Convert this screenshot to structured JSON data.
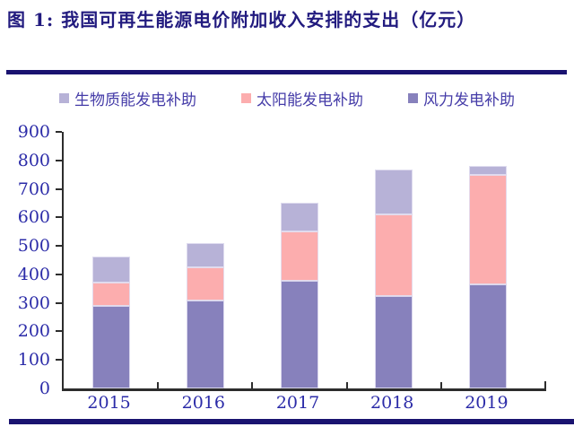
{
  "title": "图 1: 我国可再生能源电价附加收入安排的支出（亿元）",
  "colors": {
    "title": "#221b7f",
    "rule": "#1a1370",
    "axis_label": "#2b2ba8",
    "legend_text": "#453ca8",
    "axis_line": "#2d2d2d",
    "wind": "#8781bc",
    "solar": "#fcadae",
    "biomass": "#b7b2d7"
  },
  "legend": [
    {
      "label": "生物质能发电补助",
      "color_key": "biomass"
    },
    {
      "label": "太阳能发电补助",
      "color_key": "solar"
    },
    {
      "label": "风力发电补助",
      "color_key": "wind"
    }
  ],
  "chart_data": {
    "type": "bar",
    "stacked": true,
    "title": "我国可再生能源电价附加收入安排的支出（亿元）",
    "categories": [
      "2015",
      "2016",
      "2017",
      "2018",
      "2019"
    ],
    "series": [
      {
        "name": "风力发电补助",
        "color_key": "wind",
        "values": [
          290,
          307,
          378,
          325,
          365
        ]
      },
      {
        "name": "太阳能发电补助",
        "color_key": "solar",
        "values": [
          82,
          115,
          172,
          287,
          383
        ]
      },
      {
        "name": "生物质能发电补助",
        "color_key": "biomass",
        "values": [
          90,
          85,
          100,
          158,
          32
        ]
      }
    ],
    "totals": [
      462,
      507,
      650,
      770,
      780
    ],
    "xlabel": "",
    "ylabel": "",
    "ylim": [
      0,
      900
    ],
    "ytick_step": 100,
    "grid": false,
    "legend_position": "top"
  }
}
